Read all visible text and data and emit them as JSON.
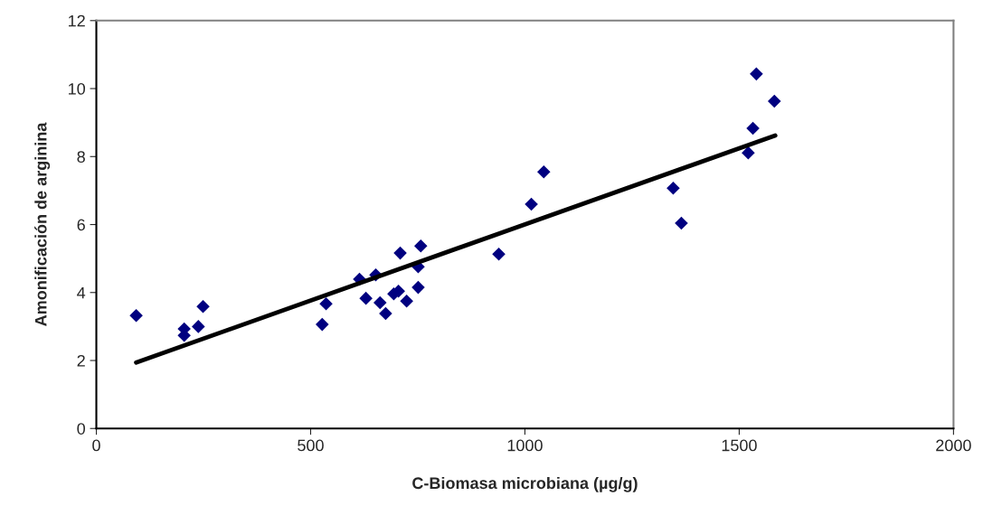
{
  "chart_data": {
    "type": "scatter",
    "xlabel": "C-Biomasa microbiana (µg/g)",
    "ylabel": "Amonificación de arginina",
    "xlim": [
      0,
      2000
    ],
    "xticks": [
      0,
      500,
      1000,
      1500,
      2000
    ],
    "ylim": [
      0,
      12
    ],
    "yticks": [
      0,
      2,
      4,
      6,
      8,
      10,
      12
    ],
    "grid": false,
    "legend": false,
    "series": [
      {
        "color": "#000080",
        "marker": "diamond",
        "x": [
          93,
          205,
          205,
          238,
          249,
          527,
          536,
          614,
          629,
          652,
          662,
          675,
          694,
          705,
          709,
          724,
          751,
          751,
          757,
          939,
          1015,
          1044,
          1346,
          1365,
          1521,
          1532,
          1540,
          1582
        ],
        "values": [
          3.32,
          2.93,
          2.74,
          3.0,
          3.59,
          3.06,
          3.67,
          4.39,
          3.83,
          4.52,
          3.7,
          3.38,
          3.96,
          4.04,
          5.16,
          3.75,
          4.15,
          4.76,
          5.37,
          5.13,
          6.6,
          7.55,
          7.07,
          6.04,
          8.11,
          8.83,
          10.43,
          9.63
        ]
      },
      {
        "type": "line",
        "color": "#000000",
        "marker": "none",
        "line_style": "solid",
        "x": [
          93,
          1584
        ],
        "values": [
          1.94,
          8.62
        ]
      }
    ]
  }
}
